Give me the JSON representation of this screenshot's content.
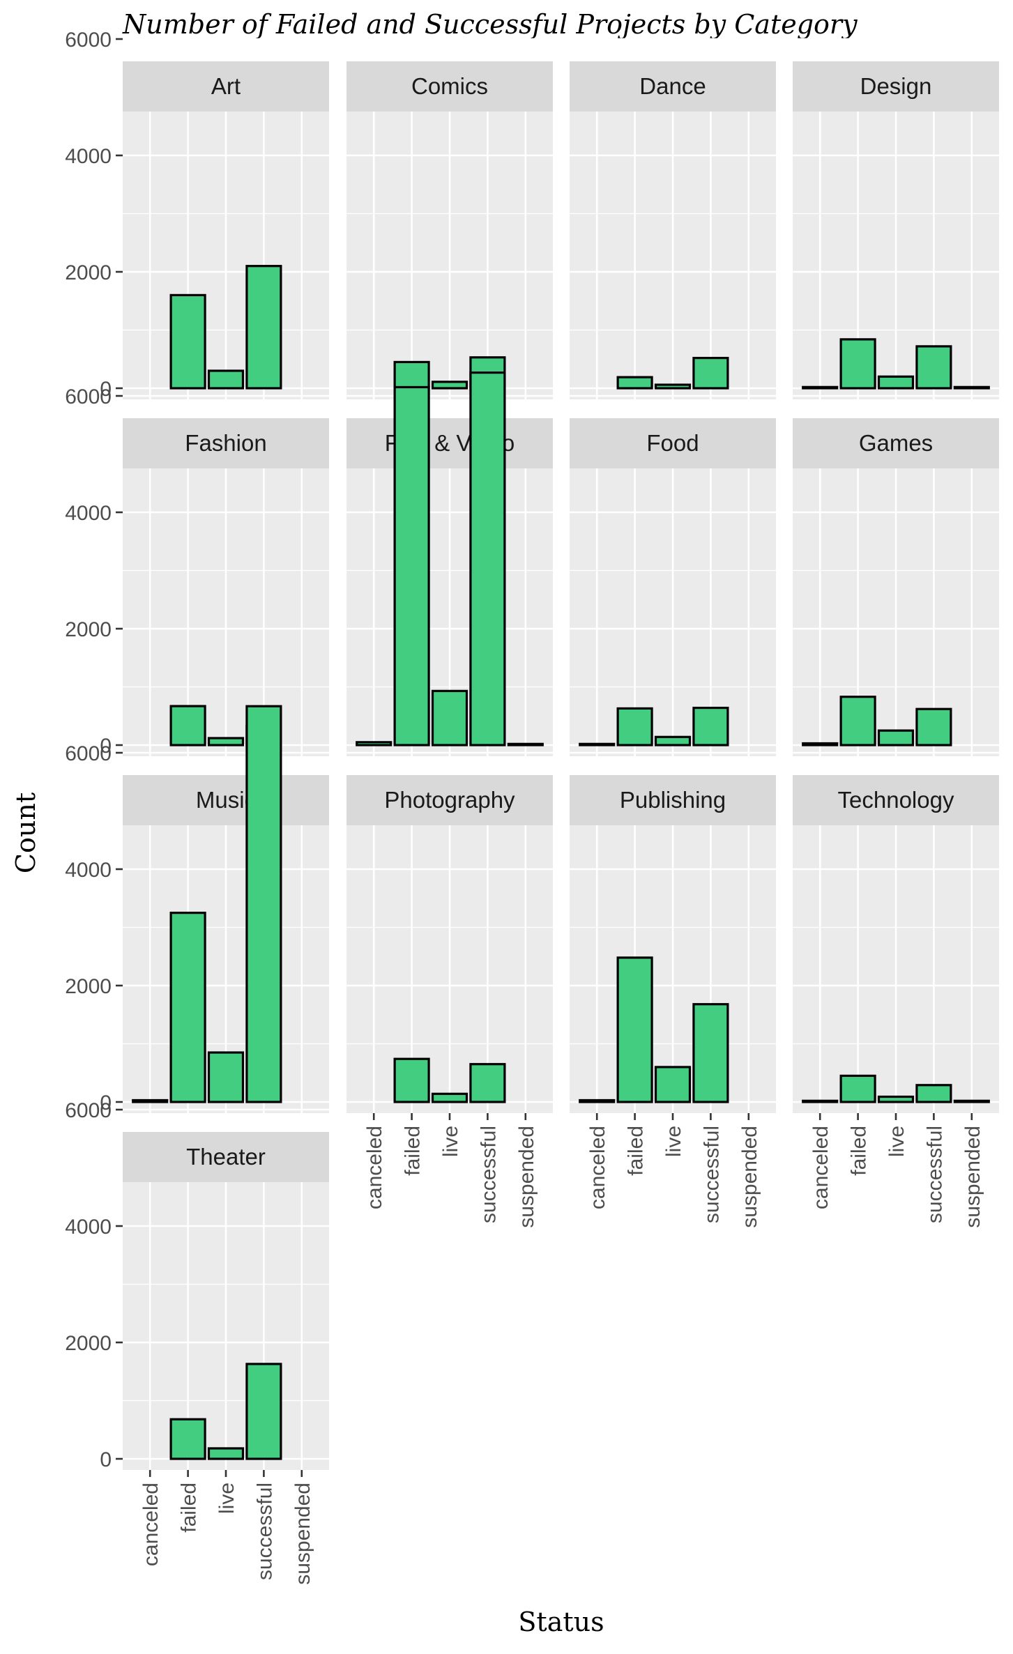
{
  "chart_data": {
    "type": "bar",
    "title": "Number of Failed and Successful Projects by Category",
    "xlabel": "Status",
    "ylabel": "Count",
    "ylim": [
      0,
      6900
    ],
    "y_ticks": [
      0,
      2000,
      4000,
      6000
    ],
    "statuses": [
      "canceled",
      "failed",
      "live",
      "successful",
      "suspended"
    ],
    "bar_color": "#43CD80",
    "panel_background": "#EBEBEB",
    "strip_background": "#D9D9D9",
    "grid": true,
    "facets": [
      {
        "name": "Art",
        "values": {
          "failed": 1600,
          "live": 300,
          "successful": 2100
        }
      },
      {
        "name": "Comics",
        "values": {
          "failed": 450,
          "live": 110,
          "successful": 530
        }
      },
      {
        "name": "Dance",
        "values": {
          "failed": 190,
          "live": 60,
          "successful": 520
        }
      },
      {
        "name": "Design",
        "values": {
          "canceled": 20,
          "failed": 840,
          "live": 200,
          "successful": 720,
          "suspended": 20
        }
      },
      {
        "name": "Fashion",
        "values": {
          "failed": 670,
          "live": 120,
          "successful": 330
        }
      },
      {
        "name": "Film & Video",
        "values": {
          "canceled": 50,
          "failed": 6150,
          "live": 930,
          "successful": 6400,
          "suspended": 20
        }
      },
      {
        "name": "Food",
        "values": {
          "canceled": 20,
          "failed": 630,
          "live": 140,
          "successful": 640
        }
      },
      {
        "name": "Games",
        "values": {
          "canceled": 30,
          "failed": 830,
          "live": 250,
          "successful": 620
        }
      },
      {
        "name": "Music",
        "values": {
          "canceled": 30,
          "failed": 3250,
          "live": 850,
          "successful": 6800
        }
      },
      {
        "name": "Photography",
        "values": {
          "failed": 740,
          "live": 140,
          "successful": 650
        }
      },
      {
        "name": "Publishing",
        "values": {
          "canceled": 30,
          "failed": 2480,
          "live": 600,
          "successful": 1680
        }
      },
      {
        "name": "Technology",
        "values": {
          "canceled": 20,
          "failed": 450,
          "live": 90,
          "successful": 290,
          "suspended": 20
        }
      },
      {
        "name": "Theater",
        "values": {
          "failed": 680,
          "live": 180,
          "successful": 1630
        }
      }
    ]
  }
}
